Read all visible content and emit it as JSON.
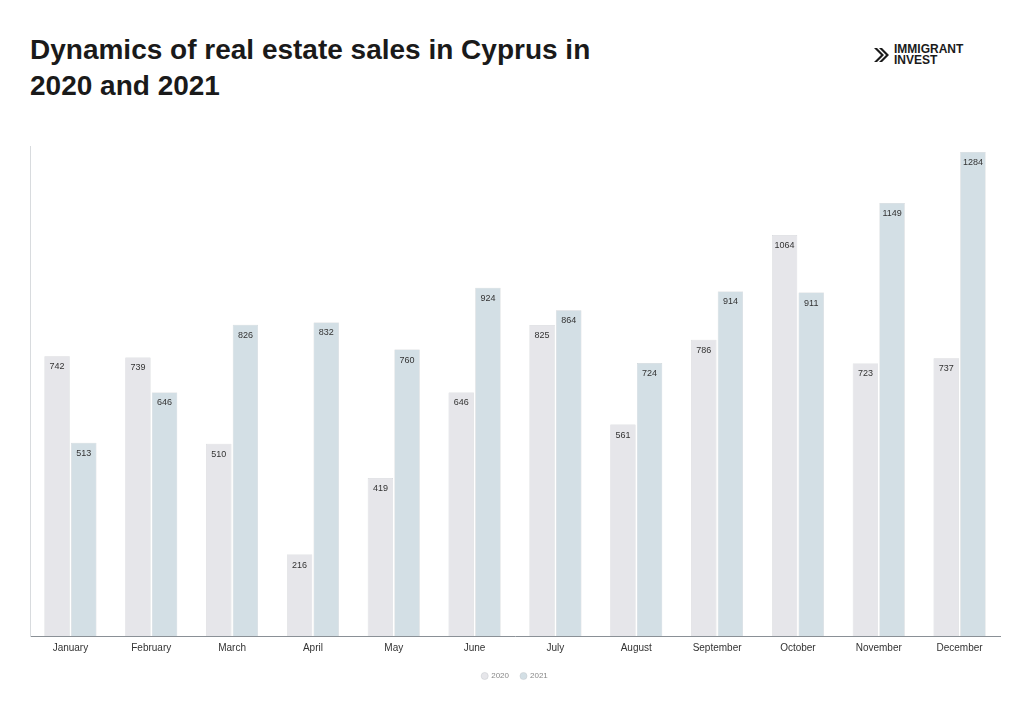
{
  "chart_data": {
    "type": "bar",
    "title": "Dynamics of real estate sales in Cyprus in 2020 and 2021",
    "annotations": [
      "IMMIGRANT",
      "INVEST"
    ],
    "categories": [
      "January",
      "February",
      "March",
      "April",
      "May",
      "June",
      "July",
      "August",
      "September",
      "October",
      "November",
      "December"
    ],
    "series": [
      {
        "name": "2020",
        "color": "#e6e6ea",
        "values": [
          742,
          739,
          510,
          216,
          419,
          646,
          825,
          561,
          786,
          1064,
          723,
          737
        ]
      },
      {
        "name": "2021",
        "color": "#d3dfe5",
        "values": [
          513,
          646,
          826,
          832,
          760,
          924,
          864,
          724,
          914,
          911,
          1149,
          1284
        ]
      }
    ],
    "ylim": [
      0,
      1300
    ],
    "grid": false,
    "legend": "bottom",
    "data_labels": true,
    "tick_labels": "x"
  }
}
